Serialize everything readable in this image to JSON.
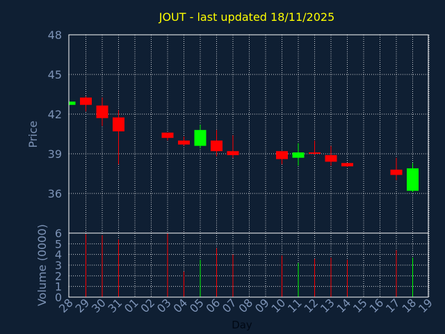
{
  "chart_data": [
    {
      "type": "candlestick",
      "title": "JOUT - last updated 18/11/2025",
      "ylabel": "Price",
      "ylim": [
        33,
        48
      ],
      "yticks": [
        36,
        39,
        42,
        45,
        48
      ],
      "grid": true,
      "up_color": "#00ff00",
      "down_color": "#ff0000",
      "candles": [
        {
          "day": "28",
          "open": 42.7,
          "high": 42.95,
          "low": 42.7,
          "close": 42.95
        },
        {
          "day": "29",
          "open": 43.25,
          "high": 43.35,
          "low": 42.2,
          "close": 42.7
        },
        {
          "day": "30",
          "open": 42.65,
          "high": 43.25,
          "low": 41.1,
          "close": 41.7
        },
        {
          "day": "31",
          "open": 41.75,
          "high": 42.3,
          "low": 38.2,
          "close": 40.7
        },
        {
          "day": "03",
          "open": 40.6,
          "high": 40.6,
          "low": 40.0,
          "close": 40.2
        },
        {
          "day": "04",
          "open": 40.0,
          "high": 40.3,
          "low": 39.6,
          "close": 39.7
        },
        {
          "day": "05",
          "open": 39.6,
          "high": 41.2,
          "low": 39.4,
          "close": 40.8
        },
        {
          "day": "06",
          "open": 40.0,
          "high": 40.8,
          "low": 38.8,
          "close": 39.2
        },
        {
          "day": "07",
          "open": 39.2,
          "high": 40.4,
          "low": 38.7,
          "close": 38.9
        },
        {
          "day": "10",
          "open": 39.2,
          "high": 39.2,
          "low": 38.2,
          "close": 38.6
        },
        {
          "day": "11",
          "open": 38.7,
          "high": 39.8,
          "low": 38.1,
          "close": 39.1
        },
        {
          "day": "12",
          "open": 39.1,
          "high": 40.0,
          "low": 38.9,
          "close": 39.0
        },
        {
          "day": "13",
          "open": 38.9,
          "high": 39.6,
          "low": 38.1,
          "close": 38.4
        },
        {
          "day": "14",
          "open": 38.3,
          "high": 38.3,
          "low": 38.0,
          "close": 38.05
        },
        {
          "day": "17",
          "open": 37.8,
          "high": 38.7,
          "low": 37.0,
          "close": 37.4
        },
        {
          "day": "18",
          "open": 36.2,
          "high": 38.3,
          "low": 36.1,
          "close": 37.9
        }
      ]
    },
    {
      "type": "bar",
      "ylabel": "Volume (0000)",
      "xlabel": "Day",
      "ylim": [
        0,
        6
      ],
      "yticks": [
        0,
        1,
        2,
        3,
        4,
        5,
        6
      ],
      "grid": true,
      "categories": [
        "28",
        "29",
        "30",
        "31",
        "01",
        "02",
        "03",
        "04",
        "05",
        "06",
        "07",
        "08",
        "09",
        "10",
        "11",
        "12",
        "13",
        "14",
        "15",
        "16",
        "17",
        "18",
        "19"
      ],
      "volumes": [
        {
          "day": "29",
          "value": 5.9,
          "direction": "down"
        },
        {
          "day": "30",
          "value": 5.8,
          "direction": "down"
        },
        {
          "day": "31",
          "value": 5.4,
          "direction": "down"
        },
        {
          "day": "03",
          "value": 6.0,
          "direction": "down"
        },
        {
          "day": "04",
          "value": 2.4,
          "direction": "down"
        },
        {
          "day": "05",
          "value": 3.5,
          "direction": "up"
        },
        {
          "day": "06",
          "value": 4.6,
          "direction": "down"
        },
        {
          "day": "07",
          "value": 4.0,
          "direction": "down"
        },
        {
          "day": "10",
          "value": 3.9,
          "direction": "down"
        },
        {
          "day": "11",
          "value": 3.2,
          "direction": "up"
        },
        {
          "day": "12",
          "value": 3.6,
          "direction": "down"
        },
        {
          "day": "13",
          "value": 3.7,
          "direction": "down"
        },
        {
          "day": "14",
          "value": 3.5,
          "direction": "down"
        },
        {
          "day": "17",
          "value": 4.4,
          "direction": "down"
        },
        {
          "day": "18",
          "value": 3.7,
          "direction": "up"
        }
      ]
    }
  ],
  "colors": {
    "background": "#0f1f33",
    "title": "#ffff00",
    "axis_text": "#7d93b6",
    "frame": "#ffffff",
    "grid": "#ffffff"
  }
}
